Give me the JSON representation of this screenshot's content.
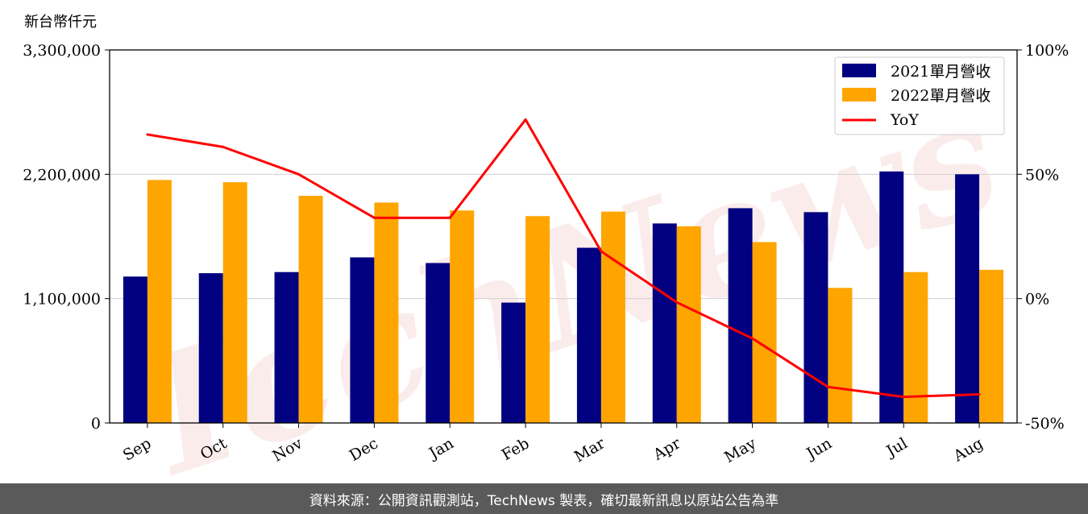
{
  "unit_label": "新台幣仟元",
  "footer_text": "資料來源：公開資訊觀測站，TechNews 製表，確切最新訊息以原站公告為準",
  "watermark_text": "TechNews",
  "colors": {
    "series_2021": "#000080",
    "series_2022": "#FFA500",
    "yoy": "#FF0000"
  },
  "chart_data": {
    "type": "bar",
    "categories": [
      "Sep",
      "Oct",
      "Nov",
      "Dec",
      "Jan",
      "Feb",
      "Mar",
      "Apr",
      "May",
      "Jun",
      "Jul",
      "Aug"
    ],
    "series": [
      {
        "name": "2021單月營收",
        "axis": "left",
        "values": [
          1295000,
          1325000,
          1335000,
          1465000,
          1415000,
          1065000,
          1550000,
          1765000,
          1900000,
          1865000,
          2225000,
          2200000
        ]
      },
      {
        "name": "2022單月營收",
        "axis": "left",
        "values": [
          2150000,
          2130000,
          2010000,
          1950000,
          1880000,
          1830000,
          1870000,
          1740000,
          1600000,
          1195000,
          1335000,
          1355000
        ]
      }
    ],
    "line_series": [
      {
        "name": "YoY",
        "type": "line",
        "axis": "right",
        "values": [
          66,
          61,
          50,
          32.5,
          32.5,
          72,
          19,
          -1.5,
          -16,
          -35.5,
          -39.5,
          -38.5
        ]
      }
    ],
    "left_axis": {
      "ylim": [
        0,
        3300000
      ],
      "ticks": [
        "0",
        "1,100,000",
        "2,200,000",
        "3,300,000"
      ]
    },
    "right_axis": {
      "ylim": [
        -50,
        100
      ],
      "ticks": [
        "-50%",
        "0%",
        "50%",
        "100%"
      ]
    },
    "grid": "horizontal",
    "legend_position": "top-right"
  }
}
